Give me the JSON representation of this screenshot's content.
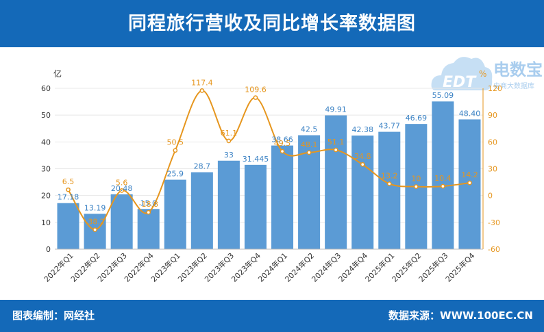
{
  "header": {
    "title": "同程旅行营收及同比增长率数据图"
  },
  "footer": {
    "editor": "图表编制：网经社",
    "source": "数据来源：WWW.100EC.CN"
  },
  "logo": {
    "text": "电数宝",
    "sub_text": "电商大数据库",
    "mark": "EDT"
  },
  "colors": {
    "header_bg": "#1469b8",
    "bar": "#5b9bd5",
    "line": "#e6961e",
    "bar_label": "#3b82c4",
    "line_label": "#e6961e"
  },
  "chart_data": {
    "type": "bar",
    "categories": [
      "2022年Q1",
      "2022年Q2",
      "2022年Q3",
      "2022年Q4",
      "2023年Q1",
      "2023年Q2",
      "2023年Q3",
      "2023年Q4",
      "2024年Q1",
      "2024年Q2",
      "2024年Q3",
      "2024年Q4",
      "2025年Q1",
      "2025年Q2",
      "2025年Q3",
      "2025年Q4"
    ],
    "ylabel": "亿",
    "y2label": "%",
    "ylim": [
      0,
      60
    ],
    "y2lim": [
      -60,
      120
    ],
    "yticks": [
      0,
      10,
      20,
      30,
      40,
      50,
      60
    ],
    "y2ticks": [
      -60,
      -30,
      0,
      30,
      60,
      90,
      120
    ],
    "legend": "none",
    "grid": true,
    "series": [
      {
        "type": "bar",
        "axis": "left",
        "values": [
          17.18,
          13.19,
          20.48,
          15.0,
          25.9,
          28.7,
          33.0,
          31.445,
          38.66,
          42.5,
          49.91,
          42.38,
          43.77,
          46.69,
          55.09,
          48.4
        ],
        "labels": [
          "17.18",
          "13.19",
          "20.48",
          "15.0",
          "25.9",
          "28.7",
          "33",
          "31.445",
          "38.66",
          "42.5",
          "49.91",
          "42.38",
          "43.77",
          "46.69",
          "55.09",
          "48.40"
        ]
      },
      {
        "type": "line",
        "axis": "right",
        "values": [
          6.5,
          -38.2,
          5.6,
          -18.8,
          50.5,
          117.4,
          61.1,
          109.6,
          49.5,
          48.1,
          51.1,
          34.8,
          13.2,
          10.0,
          10.4,
          14.2
        ],
        "labels": [
          "6.5",
          "-38.2",
          "5.6",
          "-18.8",
          "50.5",
          "117.4",
          "61.1",
          "109.6",
          "49.5",
          "48.1",
          "51.1",
          "34.8",
          "13.2",
          "10",
          "10.4",
          "14.2"
        ]
      }
    ]
  }
}
